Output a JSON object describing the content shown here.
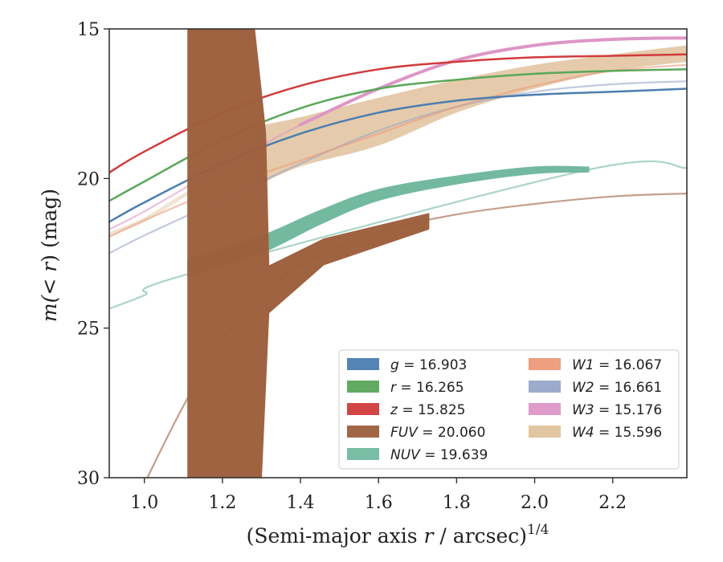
{
  "chart_data": {
    "type": "area",
    "title": "",
    "xlabel": "(Semi-major axis ",
    "xlabel_var": "r",
    "xlabel_rest": " / arcsec)",
    "xlabel_sup": "1/4",
    "ylabel_pre": "m(",
    "ylabel_var": "< r",
    "ylabel_post": ") (mag)",
    "xlim": [
      0.91,
      2.39
    ],
    "ylim": [
      15,
      30
    ],
    "y_inverted": true,
    "x_ticks": [
      1.0,
      1.2,
      1.4,
      1.6,
      1.8,
      2.0,
      2.2
    ],
    "x_tick_labels": [
      "1.0",
      "1.2",
      "1.4",
      "1.6",
      "1.8",
      "2.0",
      "2.2"
    ],
    "y_ticks": [
      15,
      20,
      25,
      30
    ],
    "y_tick_labels": [
      "15",
      "20",
      "25",
      "30"
    ],
    "grid": false,
    "legend": {
      "placement": "lower-right",
      "entries": [
        {
          "name": "g",
          "value": "16.903",
          "color": "#4c7db0"
        },
        {
          "name": "r",
          "value": "16.265",
          "color": "#5aa75a"
        },
        {
          "name": "z",
          "value": "15.825",
          "color": "#d13b3b"
        },
        {
          "name": "FUV",
          "value": "20.060",
          "color": "#9c5e3c"
        },
        {
          "name": "NUV",
          "value": "19.639",
          "color": "#72b9a0"
        },
        {
          "name": "W1",
          "value": "16.067",
          "color": "#ec9a78"
        },
        {
          "name": "W2",
          "value": "16.661",
          "color": "#97a6c8"
        },
        {
          "name": "W3",
          "value": "15.176",
          "color": "#dd96c6"
        },
        {
          "name": "W4",
          "value": "15.596",
          "color": "#e0c29c"
        }
      ]
    },
    "series": [
      {
        "key": "W4",
        "color": "#e0c29c",
        "opacity": 0.85,
        "band": [
          [
            1.29,
            18.25,
            20.25
          ],
          [
            1.4,
            17.95,
            19.6
          ],
          [
            1.6,
            17.3,
            18.9
          ],
          [
            1.8,
            16.7,
            17.8
          ],
          [
            2.0,
            16.2,
            17.0
          ],
          [
            2.2,
            15.85,
            16.4
          ],
          [
            2.39,
            15.55,
            16.1
          ]
        ]
      },
      {
        "key": "W4",
        "color": "#e0c29c",
        "opacity": 0.45,
        "band": [
          [
            0.91,
            21.8,
            21.95
          ],
          [
            1.0,
            21.3,
            21.45
          ],
          [
            1.1,
            20.5,
            20.65
          ],
          [
            1.2,
            19.75,
            19.9
          ],
          [
            1.29,
            19.1,
            19.25
          ]
        ]
      },
      {
        "key": "FUV",
        "color": "#9c5e3c",
        "opacity": 0.6,
        "line": [
          [
            1.0,
            30.2
          ],
          [
            1.1,
            27.6
          ],
          [
            1.2,
            25.4
          ],
          [
            1.3,
            23.9
          ],
          [
            1.4,
            22.9
          ],
          [
            1.6,
            21.8
          ],
          [
            1.8,
            21.2
          ],
          [
            2.0,
            20.85
          ],
          [
            2.2,
            20.6
          ],
          [
            2.39,
            20.5
          ]
        ]
      },
      {
        "key": "NUV",
        "color": "#72b9a0",
        "opacity": 0.6,
        "line": [
          [
            0.91,
            24.35
          ],
          [
            1.0,
            23.9
          ],
          [
            1.11,
            23.2
          ],
          [
            2.14,
            19.7
          ],
          [
            2.39,
            19.65
          ]
        ]
      },
      {
        "key": "W2",
        "color": "#97a6c8",
        "opacity": 0.6,
        "line": [
          [
            0.91,
            22.5
          ],
          [
            1.0,
            21.9
          ],
          [
            1.2,
            20.7
          ],
          [
            1.4,
            19.5
          ],
          [
            1.6,
            18.4
          ],
          [
            1.8,
            17.6
          ],
          [
            2.0,
            17.1
          ],
          [
            2.2,
            16.85
          ],
          [
            2.39,
            16.75
          ]
        ]
      },
      {
        "key": "W3",
        "color": "#dd96c6",
        "opacity": 0.6,
        "line": [
          [
            0.91,
            21.7
          ],
          [
            1.0,
            21.1
          ],
          [
            1.2,
            19.6
          ],
          [
            1.4,
            18.2
          ]
        ]
      },
      {
        "key": "W1",
        "color": "#ec9a78",
        "opacity": 0.6,
        "line": [
          [
            0.91,
            21.95
          ],
          [
            1.0,
            21.4
          ],
          [
            1.2,
            20.3
          ],
          [
            1.4,
            19.4
          ],
          [
            1.6,
            18.5
          ],
          [
            1.8,
            17.6
          ],
          [
            2.0,
            16.9
          ],
          [
            2.2,
            16.4
          ],
          [
            2.39,
            16.2
          ]
        ]
      },
      {
        "key": "W3",
        "color": "#dd96c6",
        "opacity": 1.0,
        "width": 4,
        "line": [
          [
            1.4,
            18.2
          ],
          [
            1.6,
            17.0
          ],
          [
            1.8,
            16.05
          ],
          [
            2.0,
            15.55
          ],
          [
            2.2,
            15.35
          ],
          [
            2.39,
            15.3
          ]
        ]
      },
      {
        "key": "g",
        "color": "#4c7db0",
        "opacity": 1.0,
        "width": 2.5,
        "line": [
          [
            0.91,
            21.45
          ],
          [
            1.0,
            20.8
          ],
          [
            1.2,
            19.5
          ],
          [
            1.4,
            18.5
          ],
          [
            1.6,
            17.8
          ],
          [
            1.8,
            17.4
          ],
          [
            2.0,
            17.2
          ],
          [
            2.2,
            17.1
          ],
          [
            2.39,
            17.0
          ]
        ]
      },
      {
        "key": "r",
        "color": "#5aa75a",
        "opacity": 1.0,
        "width": 2.5,
        "line": [
          [
            0.91,
            20.75
          ],
          [
            1.0,
            20.1
          ],
          [
            1.2,
            18.7
          ],
          [
            1.4,
            17.65
          ],
          [
            1.6,
            17.0
          ],
          [
            1.8,
            16.7
          ],
          [
            2.0,
            16.5
          ],
          [
            2.2,
            16.4
          ],
          [
            2.39,
            16.35
          ]
        ]
      },
      {
        "key": "z",
        "color": "#d13b3b",
        "opacity": 1.0,
        "width": 2.5,
        "line": [
          [
            0.91,
            19.8
          ],
          [
            1.0,
            19.1
          ],
          [
            1.2,
            17.8
          ],
          [
            1.4,
            16.9
          ],
          [
            1.6,
            16.35
          ],
          [
            1.8,
            16.1
          ],
          [
            2.0,
            15.95
          ],
          [
            2.2,
            15.9
          ],
          [
            2.39,
            15.85
          ]
        ]
      },
      {
        "key": "NUV",
        "color": "#72b9a0",
        "opacity": 1.0,
        "band": [
          [
            1.11,
            22.7,
            23.3
          ],
          [
            1.3,
            21.9,
            22.5
          ],
          [
            1.45,
            21.05,
            21.55
          ],
          [
            1.6,
            20.35,
            20.75
          ],
          [
            1.8,
            19.9,
            20.2
          ],
          [
            2.0,
            19.6,
            19.85
          ],
          [
            2.14,
            19.6,
            19.8
          ]
        ]
      },
      {
        "key": "FUV",
        "color": "#9c5e3c",
        "opacity": 0.97,
        "polygon": [
          [
            1.11,
            14.6
          ],
          [
            1.28,
            14.6
          ],
          [
            1.3,
            17.0
          ],
          [
            1.312,
            18.5
          ],
          [
            1.32,
            22.9
          ],
          [
            1.46,
            22.0
          ],
          [
            1.73,
            21.15
          ],
          [
            1.73,
            21.7
          ],
          [
            1.46,
            22.9
          ],
          [
            1.32,
            24.5
          ],
          [
            1.3,
            30.3
          ],
          [
            1.11,
            30.3
          ]
        ]
      }
    ]
  }
}
